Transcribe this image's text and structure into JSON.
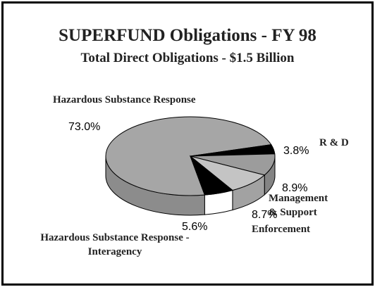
{
  "chart_data": {
    "type": "pie3d",
    "title": "SUPERFUND Obligations - FY 98",
    "subtitle": "Total Direct Obligations - $1.5 Billion",
    "categories": [
      "Hazardous Substance Response",
      "R & D",
      "Management\n& Support",
      "Enforcement",
      "Hazardous Substance Response -\nInteragency"
    ],
    "values": [
      73.0,
      3.8,
      8.9,
      8.7,
      5.6
    ],
    "value_labels": [
      "73.0%",
      "3.8%",
      "8.9%",
      "8.7%",
      "5.6%"
    ],
    "colors": [
      "#a6a6a6",
      "#000000",
      "#9c9c9c",
      "#c4c4c4",
      "#000000"
    ]
  }
}
